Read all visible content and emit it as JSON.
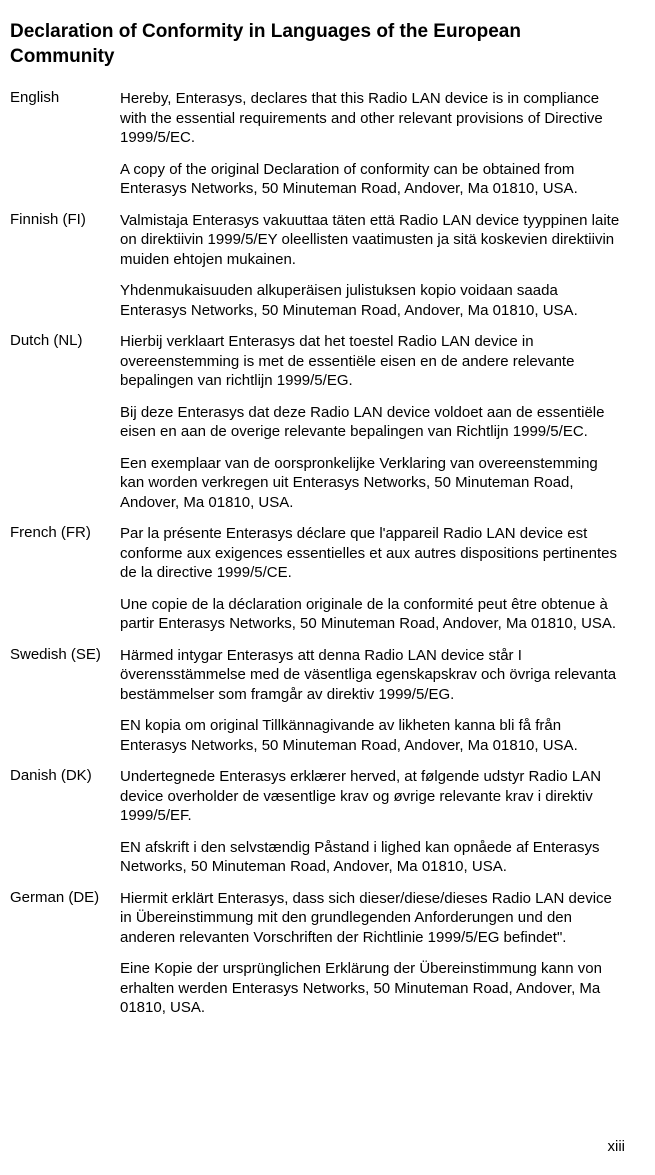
{
  "title": "Declaration of Conformity in Languages of the European Community",
  "rows": [
    {
      "lang": "English",
      "text": "Hereby, Enterasys, declares that this Radio LAN device is in compliance with the essential requirements and other relevant provisions of Directive 1999/5/EC."
    },
    {
      "lang": "",
      "text": "A copy of the original Declaration of conformity can be obtained from Enterasys Networks, 50 Minuteman Road, Andover, Ma 01810, USA."
    },
    {
      "lang": "Finnish (FI)",
      "text": "Valmistaja Enterasys vakuuttaa täten että Radio LAN device tyyppinen laite on direktiivin 1999/5/EY oleellisten vaatimusten ja sitä koskevien direktiivin muiden ehtojen mukainen."
    },
    {
      "lang": "",
      "text": "Yhdenmukaisuuden alkuperäisen julistuksen kopio voidaan saada Enterasys Networks, 50 Minuteman Road, Andover, Ma 01810, USA."
    },
    {
      "lang": "Dutch (NL)",
      "text": "Hierbij verklaart Enterasys dat het toestel Radio LAN device in overeenstemming is met de essentiële eisen en de andere relevante bepalingen van richtlijn 1999/5/EG."
    },
    {
      "lang": "",
      "text": "Bij deze Enterasys dat deze Radio LAN device voldoet aan de essentiële eisen en aan de overige relevante bepalingen van Richtlijn 1999/5/EC."
    },
    {
      "lang": "",
      "text": "Een exemplaar van de oorspronkelijke Verklaring van overeenstemming kan worden verkregen uit Enterasys Networks, 50 Minuteman Road, Andover, Ma 01810, USA."
    },
    {
      "lang": "French (FR)",
      "text": "Par la présente Enterasys déclare que l'appareil Radio LAN device est conforme aux exigences essentielles et aux autres dispositions pertinentes de la directive 1999/5/CE."
    },
    {
      "lang": "",
      "text": "Une copie de la déclaration originale de la conformité peut être obtenue à partir Enterasys Networks, 50 Minuteman Road, Andover, Ma 01810, USA."
    },
    {
      "lang": "Swedish (SE)",
      "text": "Härmed intygar Enterasys att denna Radio LAN device står I överensstämmelse med de väsentliga egenskapskrav och övriga relevanta bestämmelser som framgår av direktiv 1999/5/EG."
    },
    {
      "lang": "",
      "text": "EN kopia om original Tillkännagivande av likheten kanna bli få från Enterasys Networks, 50 Minuteman Road, Andover, Ma 01810, USA."
    },
    {
      "lang": "Danish (DK)",
      "text": "Undertegnede Enterasys erklærer herved, at følgende udstyr Radio LAN device overholder de væsentlige krav og øvrige relevante krav i direktiv 1999/5/EF."
    },
    {
      "lang": "",
      "text": "EN afskrift i den selvstændig Påstand i lighed kan opnåede af Enterasys Networks, 50 Minuteman Road, Andover, Ma 01810, USA."
    },
    {
      "lang": "German (DE)",
      "text": "Hiermit erklärt Enterasys, dass sich dieser/diese/dieses Radio LAN device in Übereinstimmung mit den grundlegenden Anforderungen und den anderen relevanten Vorschriften der Richtlinie 1999/5/EG befindet\"."
    },
    {
      "lang": "",
      "text": "Eine Kopie der ursprünglichen Erklärung der Übereinstimmung kann von erhalten werden Enterasys Networks, 50 Minuteman Road, Andover, Ma 01810, USA."
    }
  ],
  "pagenum": "xiii"
}
